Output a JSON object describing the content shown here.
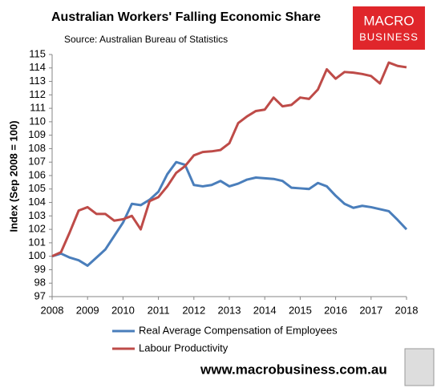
{
  "chart_data": {
    "type": "line",
    "title": "Australian Workers' Falling Economic Share",
    "subtitle": "Source: Australian Bureau of Statistics",
    "y_label": "Index (Sep 2008 = 100)",
    "x": [
      2008,
      2008.25,
      2008.5,
      2008.75,
      2009,
      2009.25,
      2009.5,
      2009.75,
      2010,
      2010.25,
      2010.5,
      2010.75,
      2011,
      2011.25,
      2011.5,
      2011.75,
      2012,
      2012.25,
      2012.5,
      2012.75,
      2013,
      2013.25,
      2013.5,
      2013.75,
      2014,
      2014.25,
      2014.5,
      2014.75,
      2015,
      2015.25,
      2015.5,
      2015.75,
      2016,
      2016.25,
      2016.5,
      2016.75,
      2017,
      2017.25,
      2017.5,
      2017.75,
      2018
    ],
    "series": [
      {
        "name": "Real Average Compensation of Employees",
        "color": "#4a7ebb",
        "values": [
          100,
          100.2,
          99.9,
          99.7,
          99.3,
          99.9,
          100.5,
          101.5,
          102.5,
          103.9,
          103.8,
          104.2,
          104.8,
          106.1,
          107.0,
          106.8,
          105.3,
          105.2,
          105.3,
          105.6,
          105.2,
          105.4,
          105.7,
          105.85,
          105.8,
          105.75,
          105.6,
          105.1,
          105.05,
          105.0,
          105.45,
          105.2,
          104.5,
          103.9,
          103.6,
          103.75,
          103.65,
          103.5,
          103.35,
          102.7,
          102.0
        ]
      },
      {
        "name": "Labour Productivity",
        "color": "#be4b48",
        "values": [
          100,
          100.3,
          101.8,
          103.4,
          103.65,
          103.15,
          103.15,
          102.65,
          102.75,
          103.0,
          102.0,
          104.1,
          104.4,
          105.2,
          106.2,
          106.7,
          107.5,
          107.75,
          107.8,
          107.9,
          108.4,
          109.9,
          110.4,
          110.8,
          110.9,
          111.8,
          111.15,
          111.25,
          111.8,
          111.7,
          112.4,
          113.9,
          113.2,
          113.7,
          113.65,
          113.55,
          113.4,
          112.85,
          114.4,
          114.15,
          114.05
        ]
      }
    ],
    "xlim": [
      2008,
      2018
    ],
    "xticks": [
      2008,
      2009,
      2010,
      2011,
      2012,
      2013,
      2014,
      2015,
      2016,
      2017,
      2018
    ],
    "ylim": [
      97,
      115
    ],
    "yticks": [
      97,
      98,
      99,
      100,
      101,
      102,
      103,
      104,
      105,
      106,
      107,
      108,
      109,
      110,
      111,
      112,
      113,
      114,
      115
    ],
    "grid": false
  },
  "logo": {
    "line1": "MACRO",
    "line2": "BUSINESS"
  },
  "footer": "www.macrobusiness.com.au"
}
